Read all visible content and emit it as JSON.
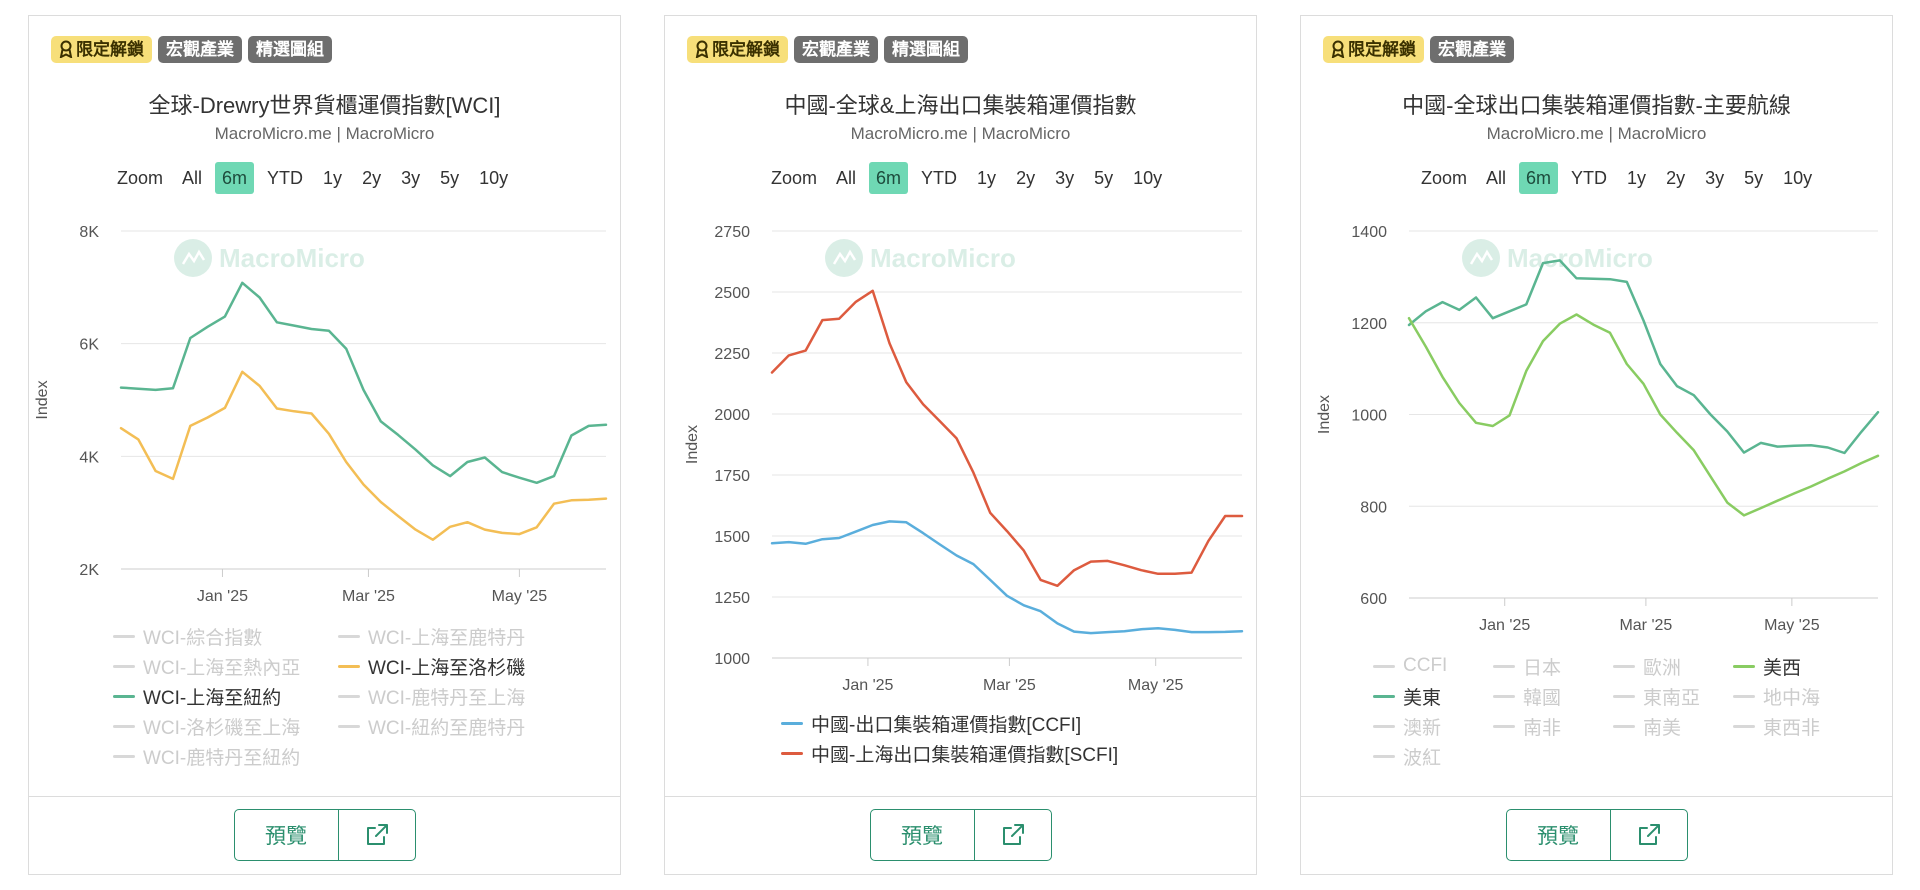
{
  "watermark": "MacroMicro",
  "colors": {
    "teal": "#5ab591",
    "yellow": "#f3be55",
    "blue": "#5aaedc",
    "red": "#dd5b3f",
    "green": "#89cc62",
    "grid": "#e6e6e6",
    "axis": "#cccccc"
  },
  "footer": {
    "preview_label": "預覽"
  },
  "cards": [
    {
      "badges": [
        "限定解鎖",
        "宏觀產業",
        "精選圖組"
      ],
      "title": "全球-Drewry世界貨櫃運價指數[WCI]",
      "source": "MacroMicro.me | MacroMicro",
      "range": {
        "zoom": "Zoom",
        "buttons": [
          "All",
          "6m",
          "YTD",
          "1y",
          "2y",
          "3y",
          "5y",
          "10y"
        ],
        "active": "6m"
      },
      "legend": [
        {
          "label": "WCI-綜合指數",
          "active": false
        },
        {
          "label": "WCI-上海至鹿特丹",
          "active": false
        },
        {
          "label": "WCI-上海至熱內亞",
          "active": false
        },
        {
          "label": "WCI-上海至洛杉磯",
          "active": true,
          "color": "#f3be55"
        },
        {
          "label": "WCI-上海至紐約",
          "active": true,
          "color": "#5ab591"
        },
        {
          "label": "WCI-鹿特丹至上海",
          "active": false
        },
        {
          "label": "WCI-洛杉磯至上海",
          "active": false
        },
        {
          "label": "WCI-紐約至鹿特丹",
          "active": false
        },
        {
          "label": "WCI-鹿特丹至紐約",
          "active": false
        }
      ]
    },
    {
      "badges": [
        "限定解鎖",
        "宏觀產業",
        "精選圖組"
      ],
      "title": "中國-全球&上海出口集裝箱運價指數",
      "source": "MacroMicro.me | MacroMicro",
      "range": {
        "zoom": "Zoom",
        "buttons": [
          "All",
          "6m",
          "YTD",
          "1y",
          "2y",
          "3y",
          "5y",
          "10y"
        ],
        "active": "6m"
      },
      "legend": [
        {
          "label": "中國-出口集裝箱運價指數[CCFI]",
          "active": true,
          "color": "#5aaedc"
        },
        {
          "label": "中國-上海出口集裝箱運價指數[SCFI]",
          "active": true,
          "color": "#dd5b3f"
        }
      ]
    },
    {
      "badges": [
        "限定解鎖",
        "宏觀產業"
      ],
      "title": "中國-全球出口集裝箱運價指數-主要航線",
      "source": "MacroMicro.me | MacroMicro",
      "range": {
        "zoom": "Zoom",
        "buttons": [
          "All",
          "6m",
          "YTD",
          "1y",
          "2y",
          "3y",
          "5y",
          "10y"
        ],
        "active": "6m"
      },
      "legend": [
        {
          "label": "CCFI",
          "active": false
        },
        {
          "label": "日本",
          "active": false
        },
        {
          "label": "歐洲",
          "active": false
        },
        {
          "label": "美西",
          "active": true,
          "color": "#89cc62"
        },
        {
          "label": "美東",
          "active": true,
          "color": "#5ab591"
        },
        {
          "label": "韓國",
          "active": false
        },
        {
          "label": "東南亞",
          "active": false
        },
        {
          "label": "地中海",
          "active": false
        },
        {
          "label": "澳新",
          "active": false
        },
        {
          "label": "南非",
          "active": false
        },
        {
          "label": "南美",
          "active": false
        },
        {
          "label": "東西非",
          "active": false
        },
        {
          "label": "波紅",
          "active": false
        }
      ]
    }
  ],
  "chart_data": [
    {
      "type": "line",
      "title": "全球-Drewry世界貨櫃運價指數[WCI]",
      "ylabel": "Index",
      "ylim": [
        2000,
        8000
      ],
      "yticks": [
        2000,
        4000,
        6000,
        8000
      ],
      "ytick_labels": [
        "2K",
        "4K",
        "6K",
        "8K"
      ],
      "xlim": [
        "2024-11-21",
        "2025-06-05"
      ],
      "xticks": [
        {
          "date": "2025-01-01",
          "label": "Jan '25"
        },
        {
          "date": "2025-03-01",
          "label": "Mar '25"
        },
        {
          "date": "2025-05-01",
          "label": "May '25"
        }
      ],
      "grid": true,
      "series": [
        {
          "name": "WCI-上海至紐約",
          "color": "#5ab591",
          "x": [
            "2024-11-21",
            "2024-11-28",
            "2024-12-05",
            "2024-12-12",
            "2024-12-19",
            "2024-12-26",
            "2025-01-02",
            "2025-01-09",
            "2025-01-16",
            "2025-01-23",
            "2025-01-30",
            "2025-02-06",
            "2025-02-13",
            "2025-02-20",
            "2025-02-27",
            "2025-03-06",
            "2025-03-13",
            "2025-03-20",
            "2025-03-27",
            "2025-04-03",
            "2025-04-10",
            "2025-04-17",
            "2025-04-24",
            "2025-05-01",
            "2025-05-08",
            "2025-05-15",
            "2025-05-22",
            "2025-05-29",
            "2025-06-05"
          ],
          "values": [
            5220,
            5200,
            5180,
            5210,
            6100,
            6300,
            6480,
            7080,
            6820,
            6380,
            6320,
            6260,
            6230,
            5910,
            5180,
            4620,
            4380,
            4120,
            3840,
            3650,
            3900,
            3980,
            3720,
            3620,
            3530,
            3650,
            4370,
            4540,
            4560
          ]
        },
        {
          "name": "WCI-上海至洛杉磯",
          "color": "#f3be55",
          "x": [
            "2024-11-21",
            "2024-11-28",
            "2024-12-05",
            "2024-12-12",
            "2024-12-19",
            "2024-12-26",
            "2025-01-02",
            "2025-01-09",
            "2025-01-16",
            "2025-01-23",
            "2025-01-30",
            "2025-02-06",
            "2025-02-13",
            "2025-02-20",
            "2025-02-27",
            "2025-03-06",
            "2025-03-13",
            "2025-03-20",
            "2025-03-27",
            "2025-04-03",
            "2025-04-10",
            "2025-04-17",
            "2025-04-24",
            "2025-05-01",
            "2025-05-08",
            "2025-05-15",
            "2025-05-22",
            "2025-05-29",
            "2025-06-05"
          ],
          "values": [
            4500,
            4300,
            3740,
            3600,
            4540,
            4690,
            4860,
            5500,
            5250,
            4850,
            4800,
            4760,
            4400,
            3900,
            3500,
            3190,
            2940,
            2700,
            2520,
            2750,
            2830,
            2700,
            2640,
            2620,
            2740,
            3160,
            3220,
            3230,
            3250
          ]
        }
      ]
    },
    {
      "type": "line",
      "title": "中國-全球&上海出口集裝箱運價指數",
      "ylabel": "Index",
      "ylim": [
        1000,
        2750
      ],
      "yticks": [
        1000,
        1250,
        1500,
        1750,
        2000,
        2250,
        2500,
        2750
      ],
      "xlim": [
        "2024-11-22",
        "2025-06-06"
      ],
      "xticks": [
        {
          "date": "2025-01-01",
          "label": "Jan '25"
        },
        {
          "date": "2025-03-01",
          "label": "Mar '25"
        },
        {
          "date": "2025-05-01",
          "label": "May '25"
        }
      ],
      "grid": true,
      "series": [
        {
          "name": "中國-出口集裝箱運價指數[CCFI]",
          "color": "#5aaedc",
          "x": [
            "2024-11-22",
            "2024-11-29",
            "2024-12-06",
            "2024-12-13",
            "2024-12-20",
            "2024-12-27",
            "2025-01-03",
            "2025-01-10",
            "2025-01-17",
            "2025-01-24",
            "2025-01-31",
            "2025-02-07",
            "2025-02-14",
            "2025-02-21",
            "2025-02-28",
            "2025-03-07",
            "2025-03-14",
            "2025-03-21",
            "2025-03-28",
            "2025-04-04",
            "2025-04-11",
            "2025-04-18",
            "2025-04-25",
            "2025-05-02",
            "2025-05-09",
            "2025-05-16",
            "2025-05-23",
            "2025-05-30",
            "2025-06-06"
          ],
          "values": [
            1470,
            1475,
            1468,
            1487,
            1492,
            1518,
            1545,
            1560,
            1556,
            1512,
            1465,
            1420,
            1385,
            1320,
            1255,
            1216,
            1192,
            1142,
            1108,
            1102,
            1106,
            1110,
            1118,
            1122,
            1115,
            1106,
            1106,
            1107,
            1110
          ]
        },
        {
          "name": "中國-上海出口集裝箱運價指數[SCFI]",
          "color": "#dd5b3f",
          "x": [
            "2024-11-22",
            "2024-11-29",
            "2024-12-06",
            "2024-12-13",
            "2024-12-20",
            "2024-12-27",
            "2025-01-03",
            "2025-01-10",
            "2025-01-17",
            "2025-01-24",
            "2025-01-31",
            "2025-02-07",
            "2025-02-14",
            "2025-02-21",
            "2025-02-28",
            "2025-03-07",
            "2025-03-14",
            "2025-03-21",
            "2025-03-28",
            "2025-04-04",
            "2025-04-11",
            "2025-04-18",
            "2025-04-25",
            "2025-05-02",
            "2025-05-09",
            "2025-05-16",
            "2025-05-23",
            "2025-05-30",
            "2025-06-06"
          ],
          "values": [
            2170,
            2240,
            2260,
            2385,
            2390,
            2460,
            2505,
            2290,
            2130,
            2040,
            1970,
            1900,
            1760,
            1595,
            1520,
            1440,
            1320,
            1296,
            1360,
            1395,
            1398,
            1380,
            1360,
            1345,
            1345,
            1350,
            1480,
            1582,
            1582
          ]
        }
      ]
    },
    {
      "type": "line",
      "title": "中國-全球出口集裝箱運價指數-主要航線",
      "ylabel": "Index",
      "ylim": [
        600,
        1400
      ],
      "yticks": [
        600,
        800,
        1000,
        1200,
        1400
      ],
      "xlim": [
        "2024-11-22",
        "2025-06-06"
      ],
      "xticks": [
        {
          "date": "2025-01-01",
          "label": "Jan '25"
        },
        {
          "date": "2025-03-01",
          "label": "Mar '25"
        },
        {
          "date": "2025-05-01",
          "label": "May '25"
        }
      ],
      "grid": true,
      "series": [
        {
          "name": "美東",
          "color": "#5ab591",
          "x": [
            "2024-11-22",
            "2024-11-29",
            "2024-12-06",
            "2024-12-13",
            "2024-12-20",
            "2024-12-27",
            "2025-01-03",
            "2025-01-10",
            "2025-01-17",
            "2025-01-24",
            "2025-01-31",
            "2025-02-07",
            "2025-02-14",
            "2025-02-21",
            "2025-02-28",
            "2025-03-07",
            "2025-03-14",
            "2025-03-21",
            "2025-03-28",
            "2025-04-04",
            "2025-04-11",
            "2025-04-18",
            "2025-04-25",
            "2025-05-02",
            "2025-05-09",
            "2025-05-16",
            "2025-05-23",
            "2025-05-30",
            "2025-06-06"
          ],
          "values": [
            1195,
            1225,
            1245,
            1228,
            1255,
            1210,
            1225,
            1240,
            1330,
            1336,
            1297,
            1296,
            1295,
            1289,
            1205,
            1110,
            1062,
            1042,
            1000,
            963,
            917,
            938,
            930,
            932,
            933,
            928,
            916,
            962,
            1005
          ]
        },
        {
          "name": "美西",
          "color": "#89cc62",
          "x": [
            "2024-11-22",
            "2024-11-29",
            "2024-12-06",
            "2024-12-13",
            "2024-12-20",
            "2024-12-27",
            "2025-01-03",
            "2025-01-10",
            "2025-01-17",
            "2025-01-24",
            "2025-01-31",
            "2025-02-07",
            "2025-02-14",
            "2025-02-21",
            "2025-02-28",
            "2025-03-07",
            "2025-03-14",
            "2025-03-21",
            "2025-03-28",
            "2025-04-04",
            "2025-04-11",
            "2025-04-18",
            "2025-04-25",
            "2025-05-02",
            "2025-05-09",
            "2025-05-16",
            "2025-05-23",
            "2025-05-30",
            "2025-06-06"
          ],
          "values": [
            1210,
            1148,
            1082,
            1025,
            982,
            975,
            998,
            1095,
            1160,
            1198,
            1218,
            1196,
            1178,
            1110,
            1067,
            1000,
            960,
            922,
            865,
            808,
            780,
            796,
            812,
            828,
            843,
            860,
            876,
            894,
            910
          ]
        }
      ]
    }
  ]
}
